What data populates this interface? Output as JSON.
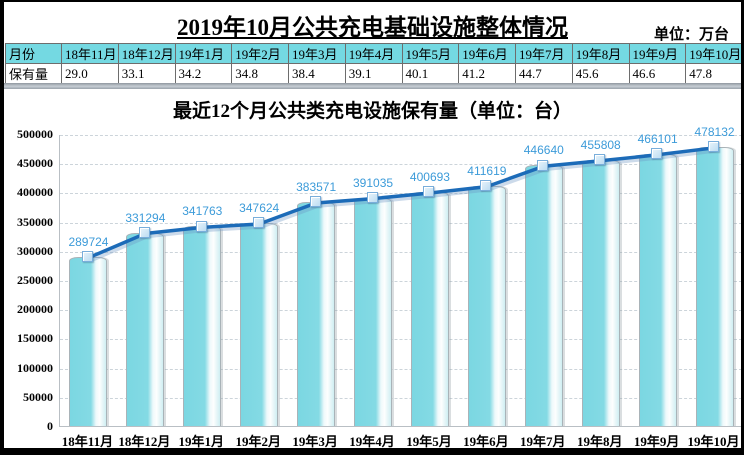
{
  "header": {
    "title": "2019年10月公共充电基础设施整体情况",
    "unit_label": "单位：万台"
  },
  "table": {
    "row_headers": [
      "月份",
      "保有量"
    ],
    "columns": [
      "18年11月",
      "18年12月",
      "19年1月",
      "19年2月",
      "19年3月",
      "19年4月",
      "19年5月",
      "19年6月",
      "19年7月",
      "19年8月",
      "19年9月",
      "19年10月"
    ],
    "values": [
      "29.0",
      "33.1",
      "34.2",
      "34.8",
      "38.4",
      "39.1",
      "40.1",
      "41.2",
      "44.7",
      "45.6",
      "46.6",
      "47.8"
    ]
  },
  "chart_data": {
    "type": "bar",
    "combo": "bar + line overlay of the same series, square markers, data labels above points",
    "title": "最近12个月公共类充电设施保有量（单位：台）",
    "categories": [
      "18年11月",
      "18年12月",
      "19年1月",
      "19年2月",
      "19年3月",
      "19年4月",
      "19年5月",
      "19年6月",
      "19年7月",
      "19年8月",
      "19年9月",
      "19年10月"
    ],
    "values": [
      289724,
      331294,
      341763,
      347624,
      383571,
      391035,
      400693,
      411619,
      446640,
      455808,
      466101,
      478132
    ],
    "xlabel": "",
    "ylabel": "",
    "ylim": [
      0,
      500000
    ],
    "ytick_step": 50000,
    "grid": "horizontal dashed",
    "legend": "none",
    "colors": {
      "bar_fill": "#7bd7e2",
      "bar_border": "#a9b3b8",
      "line": "#1c6bb8",
      "line_shadow": "rgba(110,150,195,0.35)",
      "marker_fill": "#d9ecf8",
      "marker_border": "#79aedb",
      "data_label": "#3c9bd9",
      "table_header_bg": "#74d9e2",
      "gridline": "#ccd4da"
    }
  }
}
